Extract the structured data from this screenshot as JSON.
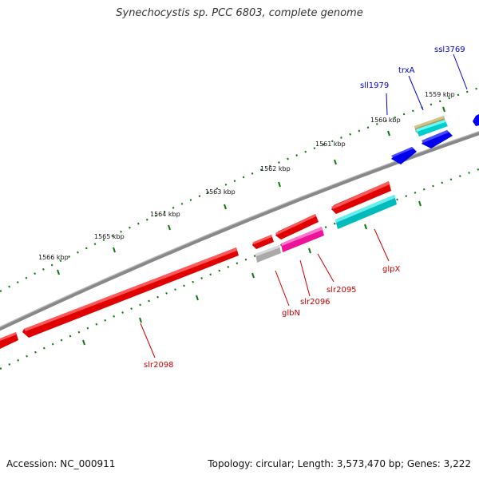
{
  "title": "Synechocystis sp. PCC 6803, complete genome",
  "footer": {
    "accession": "Accession: NC_000911",
    "summary": "Topology: circular; Length: 3,573,470 bp; Genes: 3,222"
  },
  "colors": {
    "forward_gene": "#ff0000",
    "reverse_gene": "#0000ee",
    "backbone": "#888888",
    "ticks": "#117711",
    "label_forward": "#cc0000",
    "label_reverse": "#0000cc"
  },
  "kbp_labels": [
    "1559 kbp",
    "1560 kbp",
    "1561 kbp",
    "1562 kbp",
    "1563 kbp",
    "1564 kbp",
    "1565 kbp",
    "1566 kbp"
  ],
  "gene_labels": {
    "ssl3769": "ssl3769",
    "trxA": "trxA",
    "sll1979": "sll1979",
    "glpX": "glpX",
    "slr2095": "slr2095",
    "slr2096": "slr2096",
    "glbN": "glbN",
    "slr2098": "slr2098"
  }
}
